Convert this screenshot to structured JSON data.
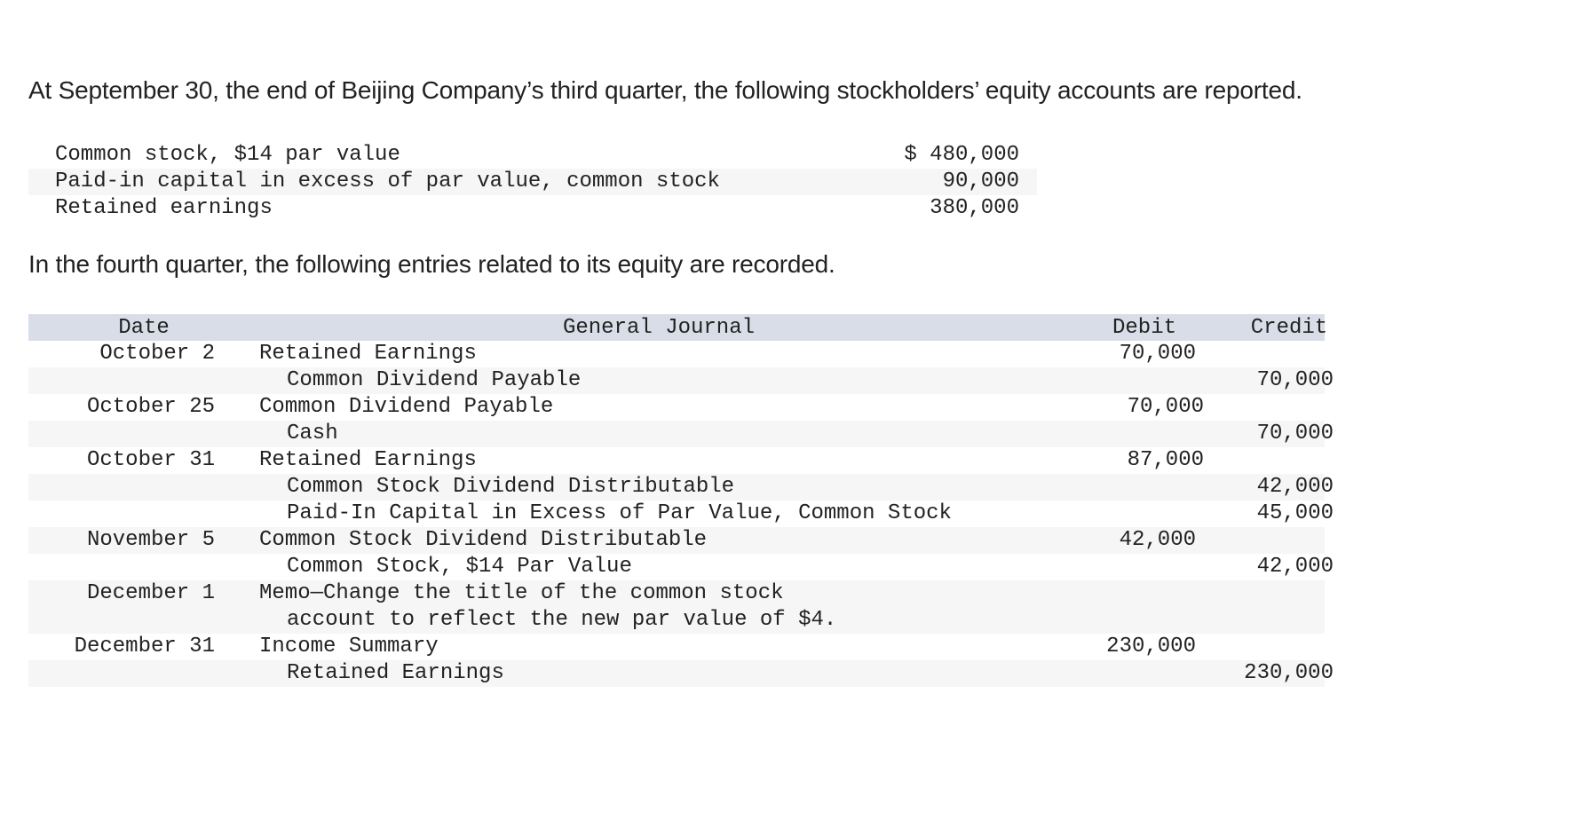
{
  "intro_text": "At September 30, the end of Beijing Company’s third quarter, the following stockholders’ equity accounts are reported.",
  "balances": [
    {
      "label": "Common stock, $14 par value",
      "amount": "$ 480,000"
    },
    {
      "label": "Paid-in capital in excess of par value, common stock",
      "amount": "90,000"
    },
    {
      "label": "Retained earnings",
      "amount": "380,000"
    }
  ],
  "mid_text": "In the fourth quarter, the following entries related to its equity are recorded.",
  "journal": {
    "headers": {
      "date": "Date",
      "general_journal": "General Journal",
      "debit": "Debit",
      "credit": "Credit"
    },
    "rows": [
      {
        "date": "October 2",
        "account": "Retained Earnings",
        "indent": 0,
        "debit": "70,000",
        "credit": ""
      },
      {
        "date": "",
        "account": "Common Dividend Payable",
        "indent": 1,
        "debit": "",
        "credit": "70,000"
      },
      {
        "date": "October 25",
        "account": "Common Dividend Payable",
        "indent": 0,
        "debit": "70,000",
        "credit": ""
      },
      {
        "date": "",
        "account": "Cash",
        "indent": 1,
        "debit": "",
        "credit": "70,000"
      },
      {
        "date": "October 31",
        "account": "Retained Earnings",
        "indent": 0,
        "debit": "87,000",
        "credit": ""
      },
      {
        "date": "",
        "account": "Common Stock Dividend Distributable",
        "indent": 1,
        "debit": "",
        "credit": "42,000"
      },
      {
        "date": "",
        "account": "Paid-In Capital in Excess of Par Value, Common Stock",
        "indent": 1,
        "debit": "",
        "credit": "45,000"
      },
      {
        "date": "November 5",
        "account": "Common Stock Dividend Distributable",
        "indent": 0,
        "debit": "42,000",
        "credit": ""
      },
      {
        "date": "",
        "account": "Common Stock, $14 Par Value",
        "indent": 1,
        "debit": "",
        "credit": "42,000"
      },
      {
        "date": "December 1",
        "account": "Memo—Change the title of the common stock",
        "indent": 0,
        "debit": "",
        "credit": ""
      },
      {
        "date": "",
        "account": "account to reflect the new par value of $4.",
        "indent": 1,
        "debit": "",
        "credit": ""
      },
      {
        "date": "December 31",
        "account": "Income Summary",
        "indent": 0,
        "debit": "230,000",
        "credit": ""
      },
      {
        "date": "",
        "account": "Retained Earnings",
        "indent": 1,
        "debit": "",
        "credit": "230,000"
      }
    ]
  }
}
